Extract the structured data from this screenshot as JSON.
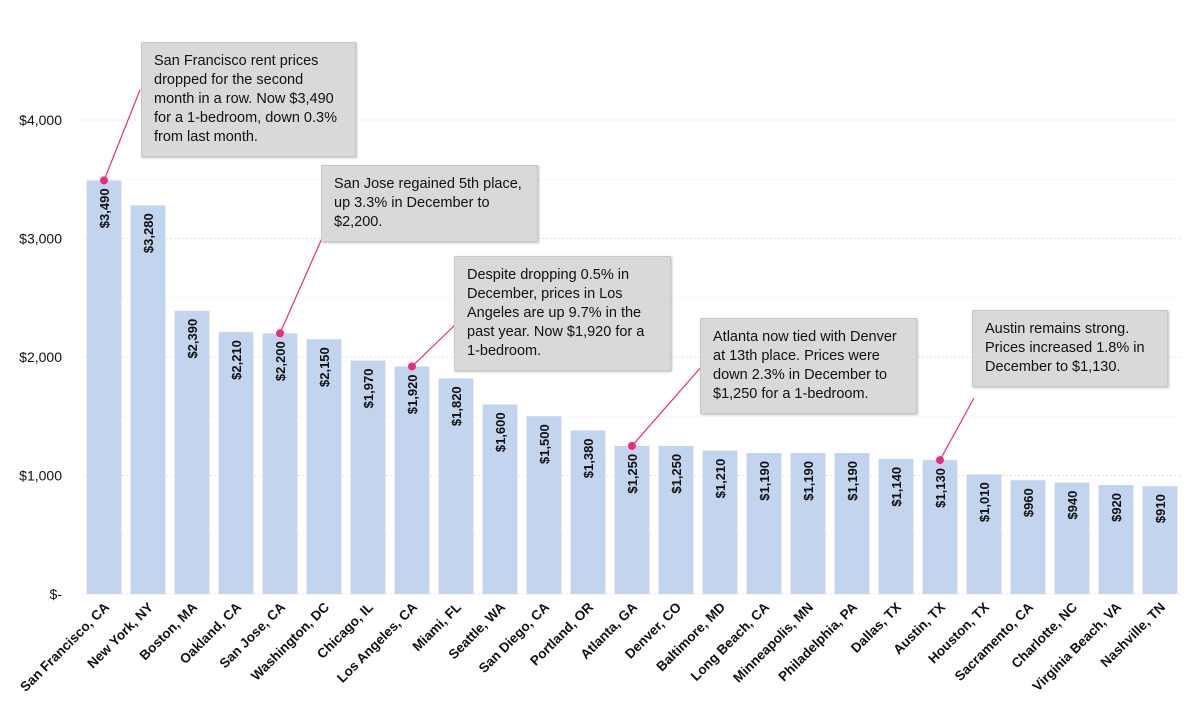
{
  "chart_data": {
    "type": "bar",
    "categories": [
      "San Francisco, CA",
      "New York, NY",
      "Boston, MA",
      "Oakland, CA",
      "San Jose, CA",
      "Washington, DC",
      "Chicago, IL",
      "Los Angeles, CA",
      "Miami, FL",
      "Seattle, WA",
      "San Diego, CA",
      "Portland, OR",
      "Atlanta, GA",
      "Denver, CO",
      "Baltimore, MD",
      "Long Beach, CA",
      "Minneapolis, MN",
      "Philadelphia, PA",
      "Dallas, TX",
      "Austin, TX",
      "Houston, TX",
      "Sacramento, CA",
      "Charlotte, NC",
      "Virginia Beach, VA",
      "Nashville, TN"
    ],
    "values": [
      3490,
      3280,
      2390,
      2210,
      2200,
      2150,
      1970,
      1920,
      1820,
      1600,
      1500,
      1380,
      1250,
      1250,
      1210,
      1190,
      1190,
      1190,
      1140,
      1130,
      1010,
      960,
      940,
      920,
      910
    ],
    "value_labels": [
      "$3,490",
      "$3,280",
      "$2,390",
      "$2,210",
      "$2,200",
      "$2,150",
      "$1,970",
      "$1,920",
      "$1,820",
      "$1,600",
      "$1,500",
      "$1,380",
      "$1,250",
      "$1,250",
      "$1,210",
      "$1,190",
      "$1,190",
      "$1,190",
      "$1,140",
      "$1,130",
      "$1,010",
      "$960",
      "$940",
      "$920",
      "$910"
    ],
    "ylim": [
      0,
      4000
    ],
    "yticks": [
      0,
      1000,
      2000,
      3000,
      4000
    ],
    "ytick_labels": [
      "$-",
      "$1,000",
      "$2,000",
      "$3,000",
      "$4,000"
    ],
    "grid": true,
    "bar_color": "#c3d4ef",
    "annotation_color": "#ee2a7b",
    "annotations": [
      {
        "category": "San Francisco, CA",
        "text": "San Francisco rent prices dropped for the second month in a row. Now $3,490 for a 1-bedroom, down 0.3% from last month."
      },
      {
        "category": "San Jose, CA",
        "text": "San Jose regained 5th place, up 3.3% in December to $2,200."
      },
      {
        "category": "Los Angeles, CA",
        "text": "Despite dropping 0.5% in December, prices in Los Angeles are up 9.7% in the past year. Now $1,920 for a 1-bedroom."
      },
      {
        "category": "Atlanta, GA",
        "text": "Atlanta now tied with Denver at 13th place. Prices were down 2.3% in December to $1,250 for a 1-bedroom."
      },
      {
        "category": "Austin, TX",
        "text": "Austin remains strong. Prices increased 1.8% in December to $1,130."
      }
    ]
  }
}
